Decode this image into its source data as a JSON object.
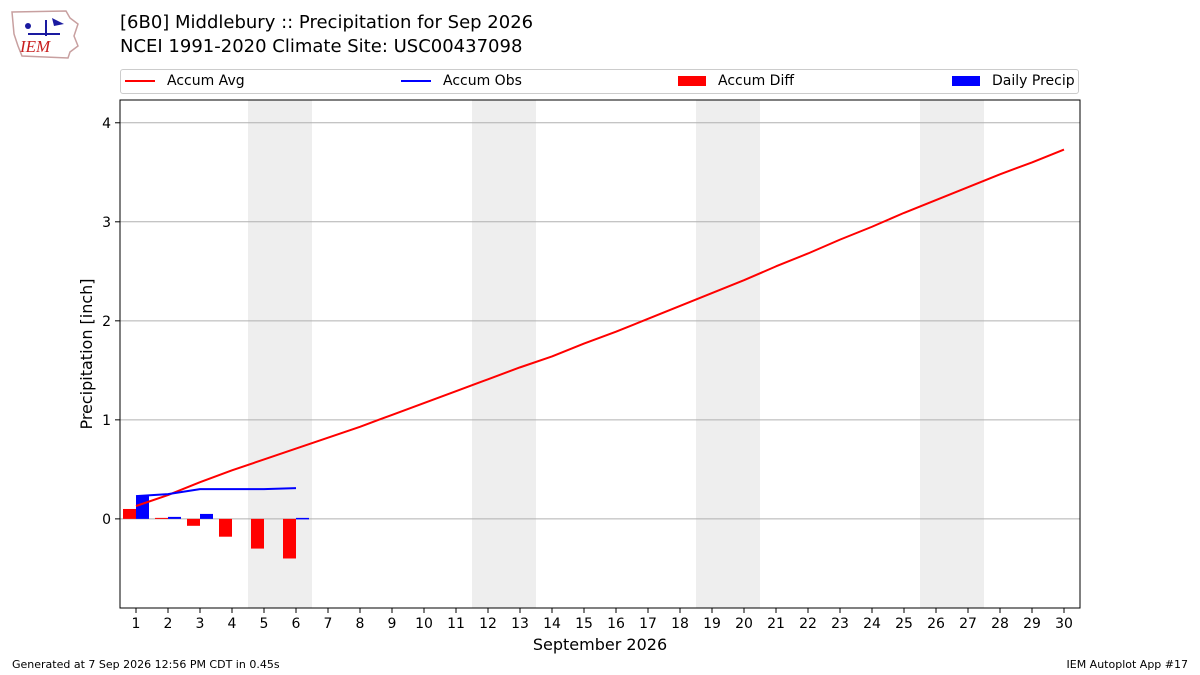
{
  "header": {
    "title_line1": "[6B0] Middlebury :: Precipitation for Sep 2026",
    "title_line2": "NCEI 1991-2020 Climate Site: USC00437098",
    "logo_text": "IEM"
  },
  "footer": {
    "generated": "Generated at 7 Sep 2026 12:56 PM CDT in 0.45s",
    "app": "IEM Autoplot App #17"
  },
  "colors": {
    "accum_avg": "#ff0000",
    "accum_obs": "#0000ff",
    "accum_diff": "#ff0000",
    "daily_precip": "#0000ff",
    "weekend_shade": "#eeeeee",
    "grid": "#b0b0b0"
  },
  "chart_data": {
    "type": "bar",
    "title": "[6B0] Middlebury :: Precipitation for Sep 2026",
    "subtitle": "NCEI 1991-2020 Climate Site: USC00437098",
    "xlabel": "September 2026",
    "ylabel": "Precipitation [inch]",
    "xlim": [
      0.5,
      30.5
    ],
    "ylim": [
      -0.9,
      4.23
    ],
    "yticks": [
      0,
      1,
      2,
      3,
      4
    ],
    "grid": "horizontal",
    "legend_position": "top",
    "weekend_days": [
      5,
      6,
      12,
      13,
      19,
      20,
      26,
      27
    ],
    "days": [
      1,
      2,
      3,
      4,
      5,
      6,
      7,
      8,
      9,
      10,
      11,
      12,
      13,
      14,
      15,
      16,
      17,
      18,
      19,
      20,
      21,
      22,
      23,
      24,
      25,
      26,
      27,
      28,
      29,
      30
    ],
    "series": [
      {
        "name": "Accum Avg",
        "kind": "line",
        "values": [
          0.13,
          0.24,
          0.37,
          0.49,
          0.6,
          0.71,
          0.82,
          0.93,
          1.05,
          1.17,
          1.29,
          1.41,
          1.53,
          1.64,
          1.77,
          1.89,
          2.02,
          2.15,
          2.28,
          2.41,
          2.55,
          2.68,
          2.82,
          2.95,
          3.09,
          3.22,
          3.35,
          3.48,
          3.6,
          3.73
        ]
      },
      {
        "name": "Accum Obs",
        "kind": "line",
        "values": [
          0.23,
          0.25,
          0.3,
          0.3,
          0.3,
          0.31
        ]
      },
      {
        "name": "Accum Diff",
        "kind": "bar",
        "values": [
          0.1,
          0.01,
          -0.07,
          -0.18,
          -0.3,
          -0.4
        ]
      },
      {
        "name": "Daily Precip",
        "kind": "bar",
        "values": [
          0.23,
          0.02,
          0.05,
          0.0,
          0.0,
          0.01
        ]
      }
    ]
  }
}
